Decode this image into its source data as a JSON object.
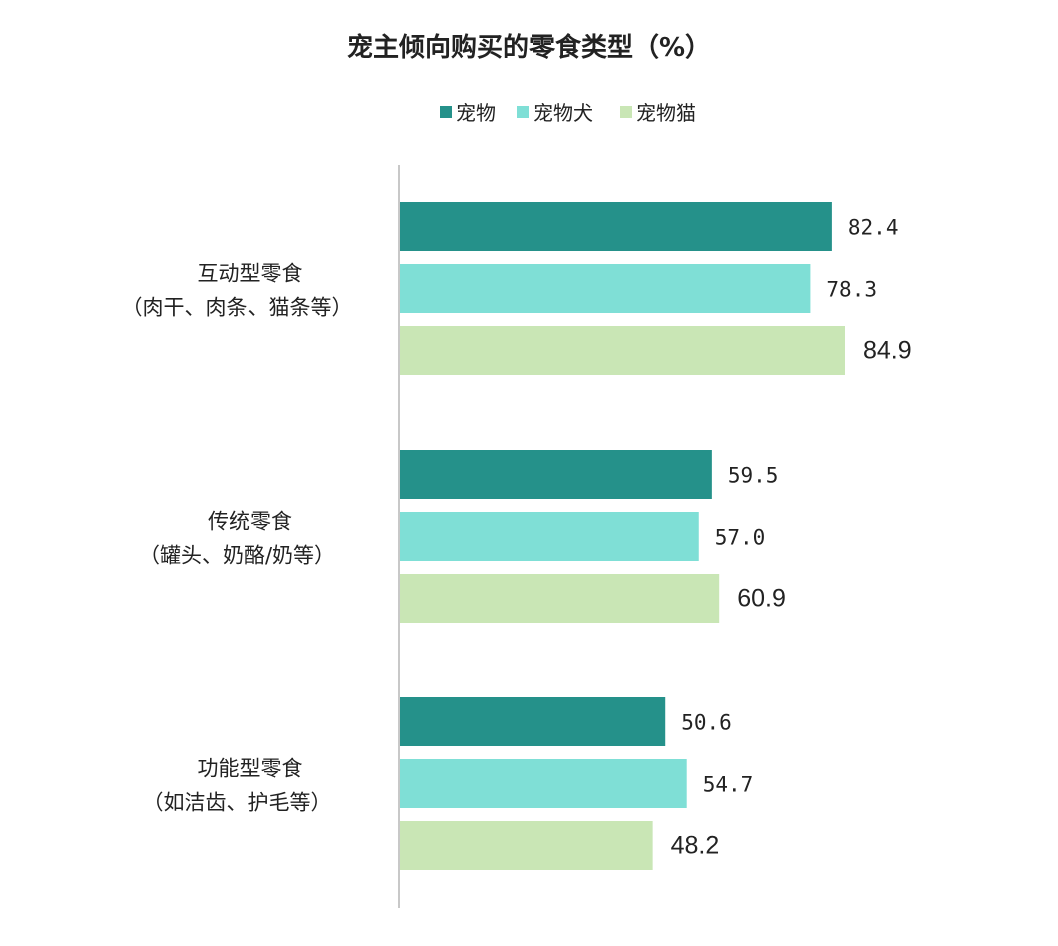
{
  "chart_data": {
    "type": "bar",
    "orientation": "horizontal",
    "title": "宠主倾向购买的零食类型（%）",
    "categories": [
      [
        "互动型零食",
        "（肉干、肉条、猫条等）"
      ],
      [
        "传统零食",
        "（罐头、奶酪/奶等）"
      ],
      [
        "功能型零食",
        "（如洁齿、护毛等）"
      ]
    ],
    "series": [
      {
        "name": "宠物",
        "color": "#25918A",
        "values": [
          82.4,
          59.5,
          50.6
        ]
      },
      {
        "name": "宠物犬",
        "color": "#7FDFD6",
        "values": [
          78.3,
          57.0,
          54.7
        ]
      },
      {
        "name": "宠物猫",
        "color": "#C9E6B5",
        "values": [
          84.9,
          60.9,
          48.2
        ]
      }
    ],
    "xlim": [
      0,
      100
    ],
    "grid": false,
    "legend_position": "top-center"
  }
}
